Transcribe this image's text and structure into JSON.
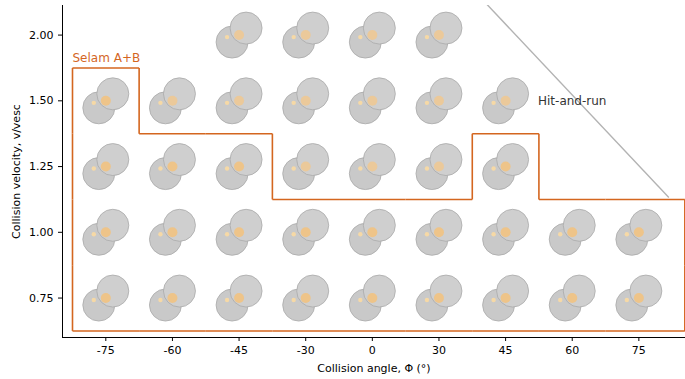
{
  "chart_data": {
    "type": "scatter",
    "xlabel": "Collision angle, Φ (°)",
    "ylabel": "Collision velocity, v/vesc",
    "xticks": [
      -75,
      -60,
      -45,
      -30,
      0,
      30,
      45,
      60,
      75
    ],
    "yticks": [
      0.75,
      {
        "value": 1,
        "label": "1.00"
      },
      1.25,
      {
        "value": 1.5,
        "label": "1.50"
      },
      {
        "value": 2,
        "label": "2.00"
      }
    ],
    "series": [
      {
        "name": "Selam A+B",
        "color": "#d4661f",
        "values": [
          [
            -75,
            0.75
          ],
          [
            -60,
            0.75
          ],
          [
            -45,
            0.75
          ],
          [
            -30,
            0.75
          ],
          [
            0,
            0.75
          ],
          [
            30,
            0.75
          ],
          [
            45,
            0.75
          ],
          [
            60,
            0.75
          ],
          [
            75,
            0.75
          ],
          [
            -75,
            1
          ],
          [
            -60,
            1
          ],
          [
            -45,
            1
          ],
          [
            -30,
            1
          ],
          [
            0,
            1
          ],
          [
            30,
            1
          ],
          [
            45,
            1
          ],
          [
            60,
            1
          ],
          [
            75,
            1
          ],
          [
            -75,
            1.25
          ],
          [
            -60,
            1.25
          ],
          [
            -45,
            1.25
          ],
          [
            45,
            1.25
          ],
          [
            -75,
            1.5
          ]
        ]
      },
      {
        "name": null,
        "color": "#c4c4c4",
        "values": [
          [
            -30,
            1.25
          ],
          [
            0,
            1.25
          ],
          [
            30,
            1.25
          ],
          [
            -60,
            1.5
          ],
          [
            -45,
            1.5
          ],
          [
            -30,
            1.5
          ],
          [
            0,
            1.5
          ],
          [
            30,
            1.5
          ],
          [
            45,
            1.5
          ],
          [
            -45,
            2
          ],
          [
            -30,
            2
          ],
          [
            0,
            2
          ],
          [
            30,
            2
          ]
        ]
      }
    ],
    "annotations": [
      {
        "text": "Hit-and-run",
        "color": "#b3b3b3"
      }
    ]
  }
}
